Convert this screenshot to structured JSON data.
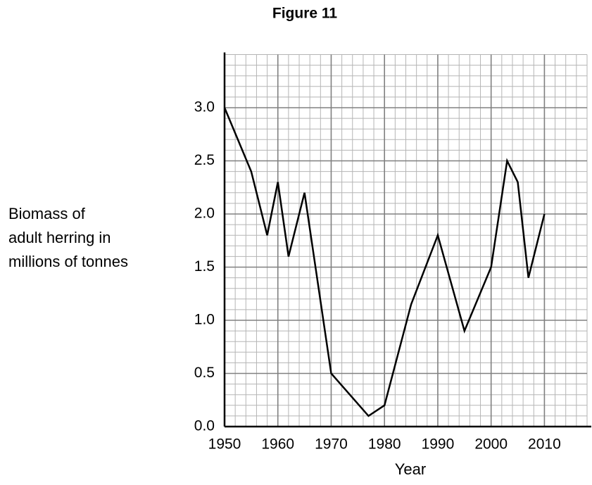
{
  "chart_data": {
    "type": "line",
    "title": "Figure 11",
    "xlabel": "Year",
    "ylabel_lines": [
      "Biomass of",
      "adult herring in",
      "millions of tonnes"
    ],
    "x": [
      1950,
      1955,
      1958,
      1960,
      1962,
      1965,
      1970,
      1977,
      1980,
      1985,
      1990,
      1995,
      2000,
      2003,
      2005,
      2007,
      2010
    ],
    "series": [
      {
        "color": "#000000",
        "values": [
          3.0,
          2.4,
          1.8,
          2.3,
          1.6,
          2.2,
          0.5,
          0.1,
          0.2,
          1.15,
          1.8,
          0.9,
          1.5,
          2.5,
          2.3,
          1.4,
          2.0
        ]
      }
    ],
    "xlim": [
      1950,
      2018
    ],
    "ylim": [
      0,
      3.5
    ],
    "xticks": [
      1950,
      1960,
      1970,
      1980,
      1990,
      2000,
      2010
    ],
    "yticks": [
      {
        "value": 0,
        "label": "0.0"
      },
      0.5,
      {
        "value": 1,
        "label": "1.0"
      },
      1.5,
      {
        "value": 2,
        "label": "2.0"
      },
      2.5,
      {
        "value": 3,
        "label": "3.0"
      }
    ],
    "grid": true,
    "minor_grid": true
  }
}
